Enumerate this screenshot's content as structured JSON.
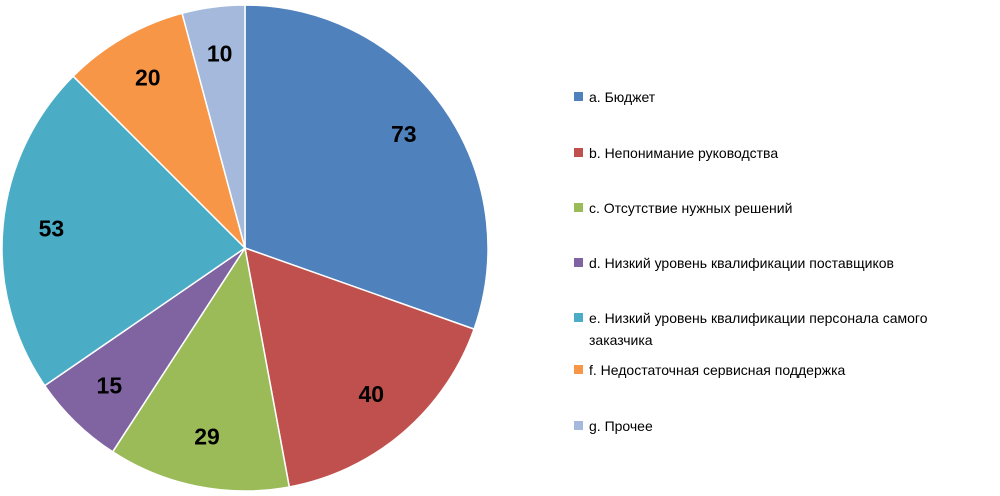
{
  "chart_data": {
    "type": "pie",
    "categories": [
      "a. Бюджет",
      "b. Непонимание руководства",
      "c. Отсутствие нужных решений",
      "d. Низкий уровень квалификации поставщиков",
      "e. Низкий уровень квалификации персонала самого заказчика",
      "f.  Недостаточная сервисная поддержка",
      "g. Прочее"
    ],
    "values": [
      73,
      40,
      29,
      15,
      53,
      20,
      10
    ],
    "colors": [
      "#4f81bd",
      "#c0504d",
      "#9bbb59",
      "#8064a2",
      "#4bacc6",
      "#f79646",
      "#a5b9dc"
    ]
  }
}
